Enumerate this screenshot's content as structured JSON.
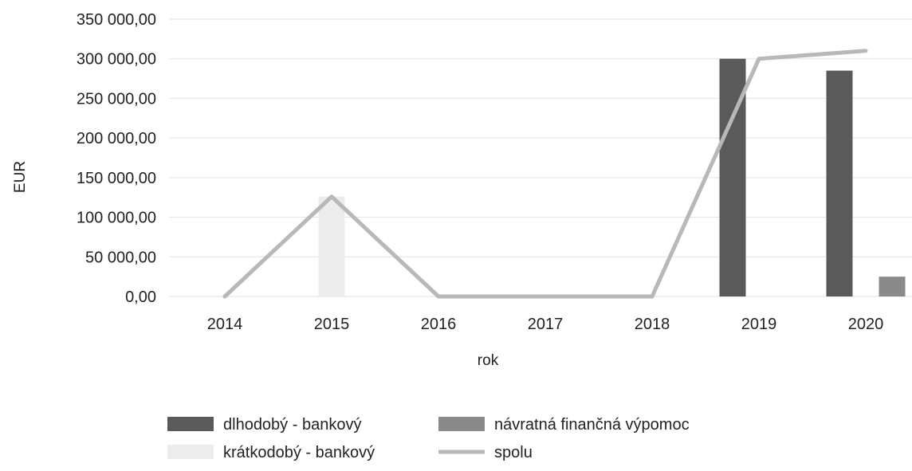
{
  "chart_data": {
    "type": "bar",
    "categories": [
      "2014",
      "2015",
      "2016",
      "2017",
      "2018",
      "2019",
      "2020"
    ],
    "ylabel": "EUR",
    "xlabel": "rok",
    "ylim": [
      0,
      350000
    ],
    "yticks": [
      "0,00",
      "50 000,00",
      "100 000,00",
      "150 000,00",
      "200 000,00",
      "250 000,00",
      "300 000,00",
      "350 000,00"
    ],
    "grid": true,
    "legend_position": "bottom",
    "series": [
      {
        "name": "dlhodobý - bankový",
        "kind": "bar",
        "color": "#5a5a5a",
        "values": [
          0,
          0,
          0,
          0,
          0,
          300000,
          285000
        ]
      },
      {
        "name": "návratná finančná výpomoc",
        "kind": "bar",
        "color": "#8a8a8a",
        "values": [
          0,
          0,
          0,
          0,
          0,
          0,
          25000
        ]
      },
      {
        "name": "krátkodobý - bankový",
        "kind": "bar",
        "color": "#ececec",
        "values": [
          0,
          126000,
          0,
          0,
          0,
          0,
          0
        ]
      },
      {
        "name": "spolu",
        "kind": "line",
        "color": "#b8b8b8",
        "values": [
          0,
          126000,
          0,
          0,
          0,
          300000,
          310000
        ]
      }
    ]
  }
}
